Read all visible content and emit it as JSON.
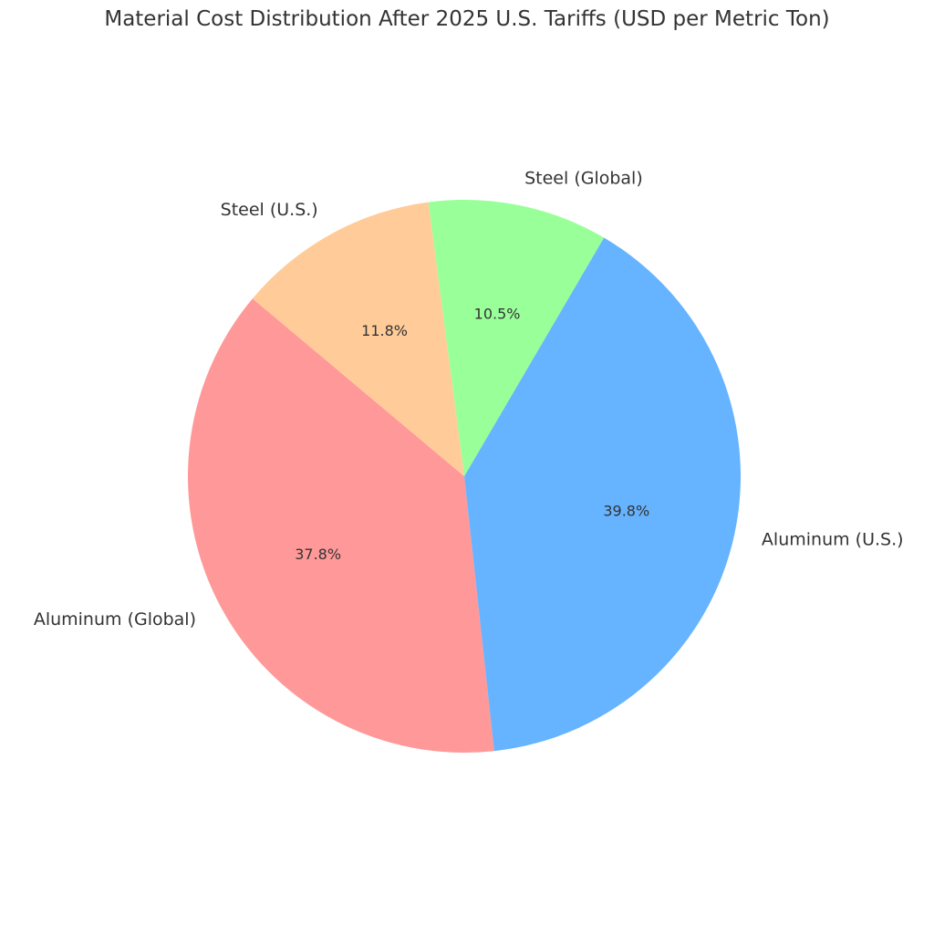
{
  "title": "Material Cost Distribution After 2025 U.S. Tariffs (USD per Metric Ton)",
  "chart_data": {
    "type": "pie",
    "title": "Material Cost Distribution After 2025 U.S. Tariffs (USD per Metric Ton)",
    "slices": [
      {
        "label": "Aluminum (Global)",
        "percent": 37.8,
        "display": "37.8%",
        "color": "#ff9999"
      },
      {
        "label": "Aluminum (U.S.)",
        "percent": 39.8,
        "display": "39.8%",
        "color": "#66b3ff"
      },
      {
        "label": "Steel (Global)",
        "percent": 10.5,
        "display": "10.5%",
        "color": "#99ff99"
      },
      {
        "label": "Steel (U.S.)",
        "percent": 11.8,
        "display": "11.8%",
        "color": "#ffcc99"
      }
    ],
    "start_angle_deg": 140,
    "direction": "counterclockwise",
    "legend": "none"
  }
}
